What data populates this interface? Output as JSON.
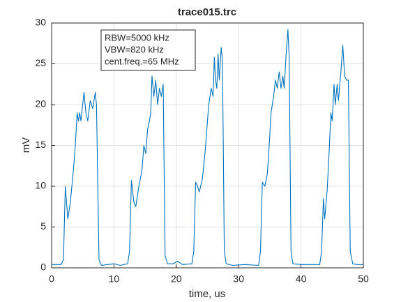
{
  "chart_data": {
    "type": "line",
    "title": "trace015.trc",
    "x_label": "time, us",
    "y_label": "mV",
    "annotations": [
      "RBW=5000 kHz",
      "VBW=820 kHz",
      "cent.freq.=65 MHz"
    ],
    "x": [
      0,
      1.5,
      1.9,
      2.2,
      2.6,
      3.0,
      3.5,
      3.8,
      4.1,
      4.3,
      4.5,
      4.7,
      5.2,
      5.5,
      5.8,
      6.2,
      6.6,
      7.0,
      7.2,
      7.6,
      8.0,
      9.0,
      10.0,
      11.0,
      12.2,
      12.5,
      12.8,
      13.2,
      13.5,
      14.0,
      14.5,
      14.8,
      15.1,
      15.4,
      15.7,
      15.9,
      16.1,
      16.4,
      16.7,
      17.0,
      17.3,
      17.6,
      17.9,
      18.2,
      18.6,
      19.5,
      20.2,
      21.0,
      22.5,
      22.8,
      23.1,
      23.4,
      23.7,
      24.2,
      24.6,
      24.9,
      25.2,
      25.6,
      25.9,
      26.1,
      26.3,
      26.5,
      26.7,
      26.9,
      27.2,
      27.4,
      27.7,
      28.0,
      29.0,
      31.0,
      33.2,
      33.5,
      33.8,
      34.2,
      34.6,
      34.9,
      35.2,
      35.6,
      35.9,
      36.2,
      36.5,
      36.8,
      37.1,
      37.3,
      37.6,
      37.9,
      38.1,
      38.4,
      38.7,
      40.0,
      42.0,
      43.0,
      43.3,
      43.6,
      43.8,
      44.2,
      44.5,
      44.8,
      45.0,
      45.3,
      45.5,
      45.8,
      46.0,
      46.4,
      46.7,
      47.0,
      47.3,
      47.6,
      47.9,
      48.3,
      49.0,
      50.0
    ],
    "series": [
      {
        "name": "trace",
        "color": "#0072bd",
        "values": [
          0.4,
          0.4,
          1.0,
          10.0,
          6.0,
          8.0,
          12.0,
          15.0,
          19.0,
          18.0,
          19.0,
          18.0,
          21.5,
          19.0,
          18.0,
          20.5,
          19.5,
          21.5,
          20.0,
          1.0,
          0.3,
          0.4,
          0.5,
          0.3,
          0.5,
          2.0,
          10.7,
          8.0,
          7.5,
          10.0,
          12.0,
          15.0,
          14.0,
          17.0,
          18.0,
          19.0,
          23.5,
          21.0,
          23.0,
          20.0,
          22.0,
          21.0,
          22.5,
          1.5,
          0.5,
          0.5,
          0.8,
          0.4,
          0.5,
          2.0,
          10.5,
          10.0,
          9.3,
          11.0,
          14.0,
          17.0,
          20.0,
          22.0,
          21.0,
          25.8,
          23.0,
          22.0,
          26.2,
          23.0,
          27.0,
          25.5,
          2.0,
          0.5,
          0.3,
          0.4,
          0.3,
          2.0,
          10.5,
          10.0,
          11.5,
          15.0,
          19.0,
          21.0,
          23.0,
          22.0,
          24.0,
          22.0,
          23.5,
          22.0,
          26.0,
          29.2,
          26.0,
          2.0,
          0.5,
          0.4,
          0.4,
          0.4,
          2.0,
          8.5,
          6.0,
          9.5,
          14.0,
          19.0,
          18.0,
          22.5,
          20.0,
          22.5,
          20.5,
          24.0,
          27.3,
          23.5,
          23.0,
          23.0,
          2.0,
          0.5,
          0.4,
          0.4
        ]
      }
    ],
    "xlim": [
      0,
      50
    ],
    "ylim": [
      0,
      30
    ],
    "xticks": [
      0,
      10,
      20,
      30,
      40,
      50
    ],
    "yticks": [
      0,
      5,
      10,
      15,
      20,
      25,
      30
    ],
    "grid": true
  }
}
